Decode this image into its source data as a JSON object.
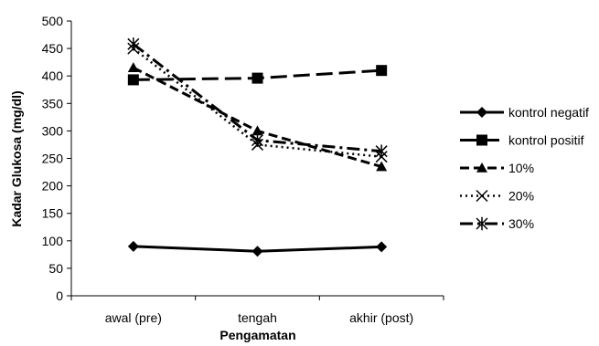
{
  "chart_data": {
    "type": "line",
    "xlabel": "Pengamatan",
    "ylabel": "Kadar Glukosa (mg/dl)",
    "categories": [
      "awal (pre)",
      "tengah",
      "akhir (post)"
    ],
    "ylim": [
      0,
      500
    ],
    "yticks": [
      "0",
      "50",
      "100",
      "150",
      "200",
      "250",
      "300",
      "350",
      "400",
      "450",
      "500"
    ],
    "grid": false,
    "legend_position": "right",
    "series": [
      {
        "name": "kontrol negatif",
        "values": [
          90,
          81,
          89
        ],
        "marker": "diamond",
        "dash": "solid",
        "color": "#000000"
      },
      {
        "name": "kontrol positif",
        "values": [
          393,
          396,
          410
        ],
        "marker": "square",
        "dash": "longdash",
        "color": "#000000"
      },
      {
        "name": "10%",
        "values": [
          415,
          300,
          235
        ],
        "marker": "triangle",
        "dash": "dash",
        "color": "#000000"
      },
      {
        "name": "20%",
        "values": [
          450,
          275,
          253
        ],
        "marker": "x",
        "dash": "dot",
        "color": "#000000"
      },
      {
        "name": "30%",
        "values": [
          458,
          283,
          263
        ],
        "marker": "star",
        "dash": "dashdot",
        "color": "#000000"
      }
    ]
  }
}
